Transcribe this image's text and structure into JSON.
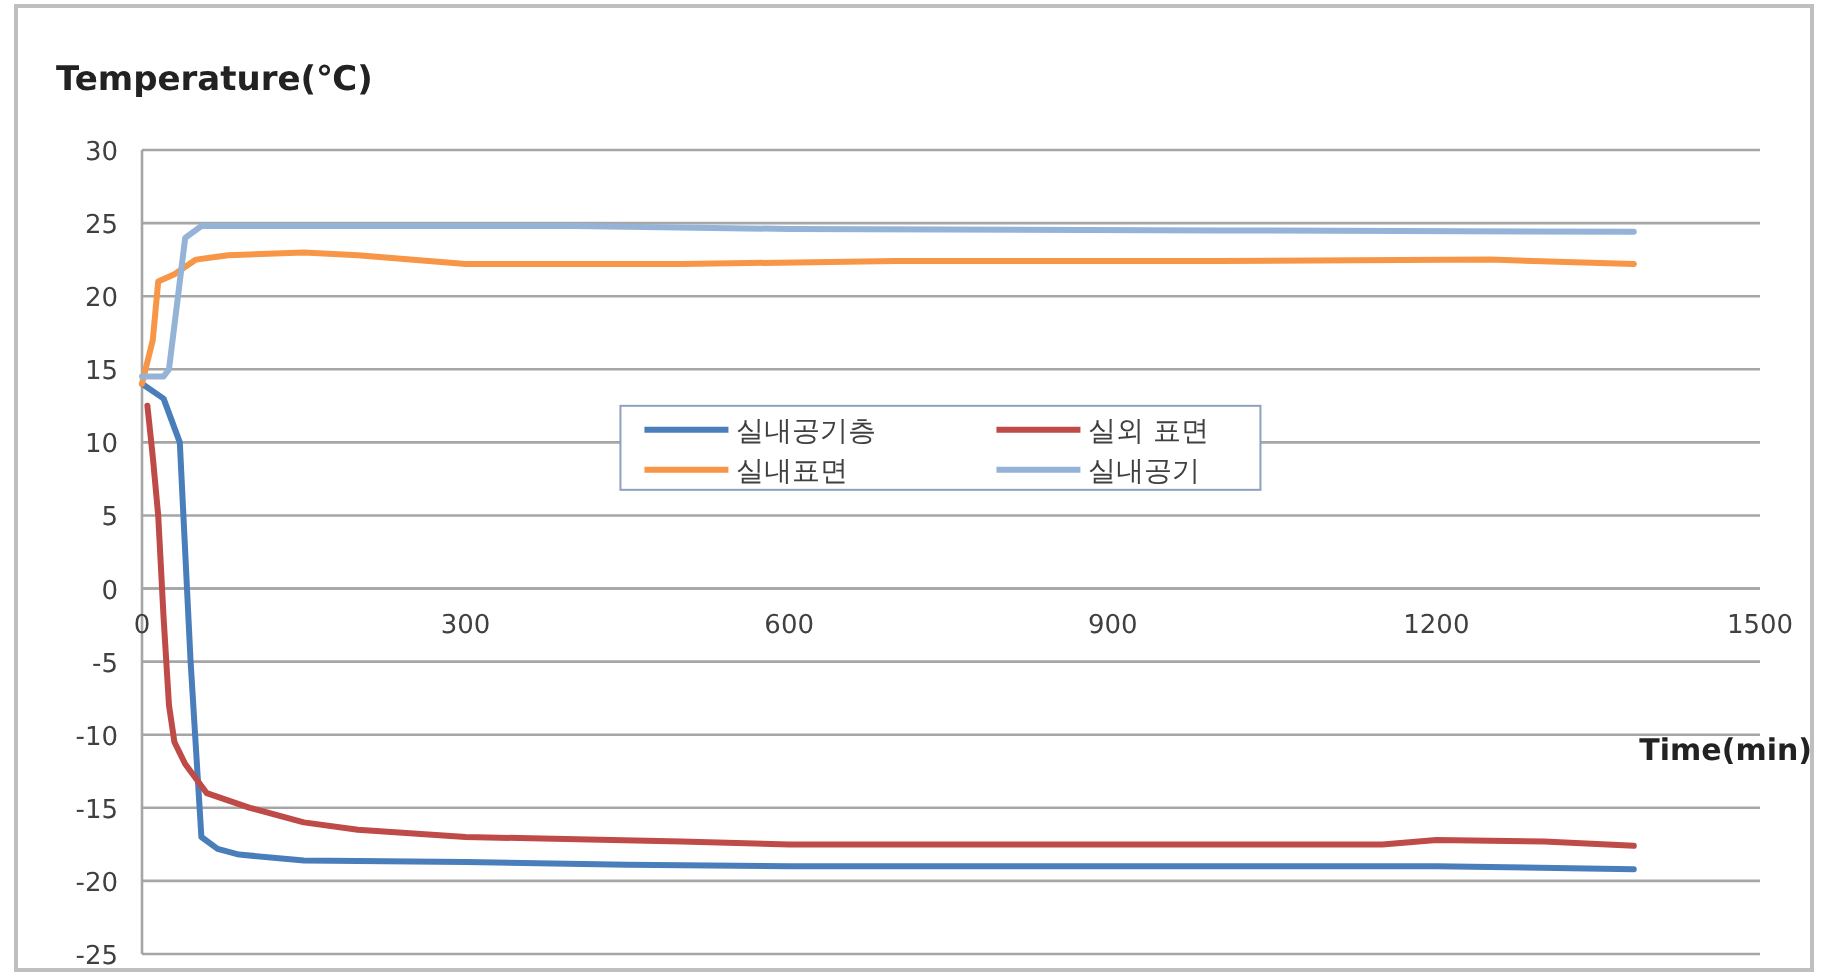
{
  "chart_data": {
    "type": "line",
    "xlabel": "Time(min)",
    "ylabel": "Temperature(℃)",
    "xlim": [
      0,
      1500
    ],
    "xticks": [
      0,
      300,
      600,
      900,
      1200,
      1500
    ],
    "ylim": [
      -25,
      30
    ],
    "yticks": [
      -25,
      -20,
      -15,
      -10,
      -5,
      0,
      5,
      10,
      15,
      20,
      25,
      30
    ],
    "grid": "y",
    "legend": "right",
    "marker": "none",
    "line_style": "solid",
    "series": [
      {
        "name": "실내공기층",
        "color": "#4a7ebb",
        "x": [
          0,
          20,
          35,
          45,
          55,
          70,
          90,
          150,
          300,
          450,
          600,
          900,
          1200,
          1383
        ],
        "values": [
          14,
          13,
          10,
          -5,
          -17,
          -17.8,
          -18.2,
          -18.6,
          -18.7,
          -18.9,
          -19,
          -19,
          -19,
          -19.2
        ]
      },
      {
        "name": "실외 표면",
        "color": "#be4b48",
        "x": [
          5,
          10,
          15,
          20,
          25,
          30,
          40,
          60,
          100,
          150,
          200,
          300,
          500,
          600,
          900,
          1150,
          1200,
          1300,
          1383
        ],
        "values": [
          12.5,
          9,
          5,
          -2,
          -8,
          -10.5,
          -12,
          -14,
          -15,
          -16,
          -16.5,
          -17,
          -17.3,
          -17.5,
          -17.5,
          -17.5,
          -17.2,
          -17.3,
          -17.6
        ]
      },
      {
        "name": "실내표면",
        "color": "#f79646",
        "x": [
          0,
          10,
          15,
          30,
          50,
          80,
          150,
          200,
          300,
          500,
          700,
          1000,
          1250,
          1383
        ],
        "values": [
          14,
          17,
          21,
          21.5,
          22.5,
          22.8,
          23,
          22.8,
          22.2,
          22.2,
          22.4,
          22.4,
          22.5,
          22.2
        ]
      },
      {
        "name": "실내공기",
        "color": "#95b3d7",
        "x": [
          0,
          20,
          25,
          40,
          55,
          100,
          400,
          600,
          1000,
          1383
        ],
        "values": [
          14.5,
          14.5,
          15,
          24,
          24.8,
          24.8,
          24.8,
          24.6,
          24.5,
          24.4
        ]
      }
    ]
  }
}
